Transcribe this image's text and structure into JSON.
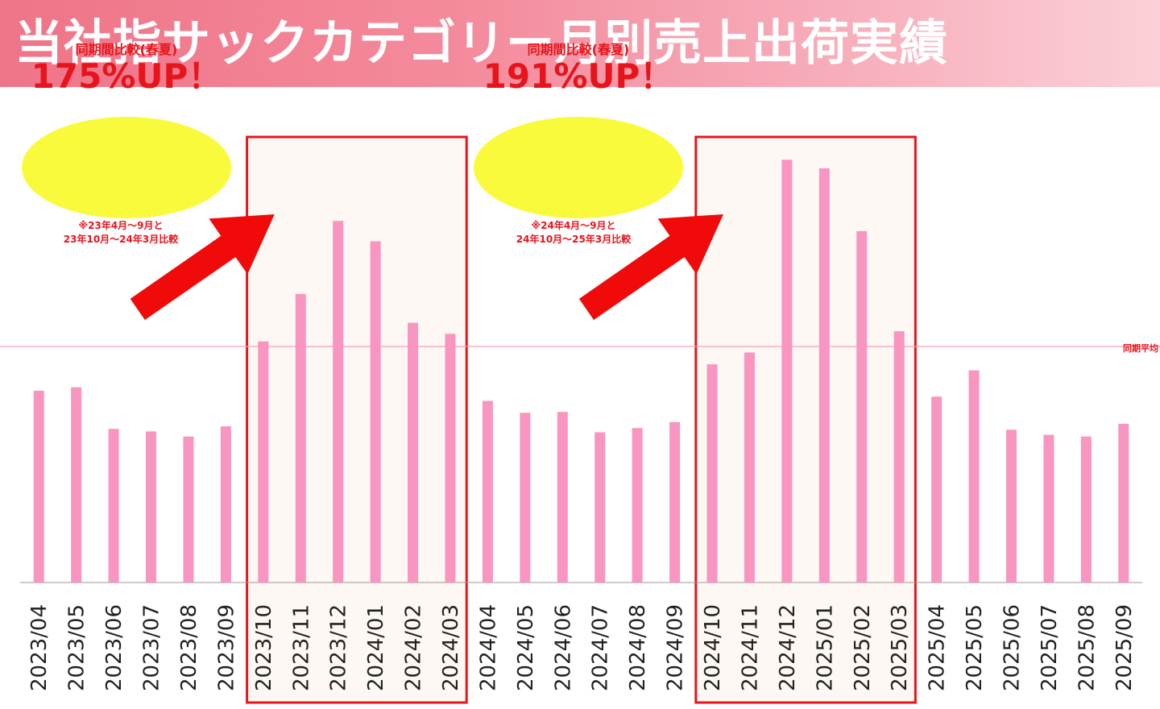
{
  "header": {
    "title": "当社指サックカテゴリー月別売上出荷実績"
  },
  "annotations": [
    {
      "subtitle": "同期間比較(春夏)",
      "headline": "175%UP！",
      "note_line1": "※23年4月～9月と",
      "note_line2": "23年10月～24年3月比較"
    },
    {
      "subtitle": "同期間比較(春夏)",
      "headline": "191%UP！",
      "note_line1": "※24年4月～9月と",
      "note_line2": "24年10月～25年3月比較"
    }
  ],
  "reference_line_label": "同期平均",
  "colors": {
    "bar": "#f895c0",
    "highlight_bg": "#fdf8f3",
    "highlight_border": "#e8141b",
    "arrow": "#f00a0a",
    "ellipse": "#fafa3c",
    "reference_line": "#f0a0b8",
    "baseline": "#999999"
  },
  "chart_data": {
    "type": "bar",
    "categories": [
      "2023/04",
      "2023/05",
      "2023/06",
      "2023/07",
      "2023/08",
      "2023/09",
      "2023/10",
      "2023/11",
      "2023/12",
      "2024/01",
      "2024/02",
      "2024/03",
      "2024/04",
      "2024/05",
      "2024/06",
      "2024/07",
      "2024/08",
      "2024/09",
      "2024/10",
      "2024/11",
      "2024/12",
      "2025/01",
      "2025/02",
      "2025/03",
      "2025/04",
      "2025/05",
      "2025/06",
      "2025/07",
      "2025/08",
      "2025/09"
    ],
    "values": [
      226,
      230,
      181,
      178,
      172,
      184,
      284,
      340,
      426,
      402,
      306,
      293,
      214,
      200,
      201,
      177,
      182,
      189,
      257,
      271,
      498,
      488,
      414,
      296,
      219,
      250,
      180,
      174,
      172,
      187
    ],
    "reference_line": 278,
    "highlight_ranges": [
      [
        6,
        11
      ],
      [
        18,
        23
      ]
    ],
    "ylim": [
      0,
      560
    ],
    "grid": false,
    "legend": "none"
  }
}
